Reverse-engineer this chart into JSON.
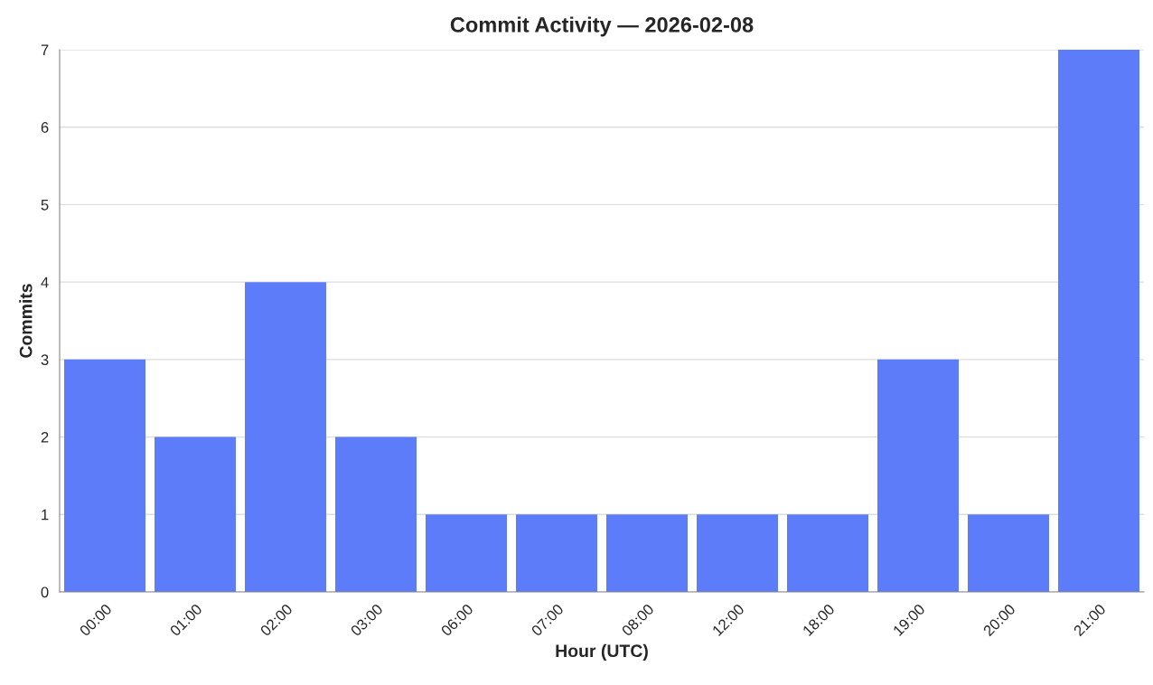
{
  "chart_data": {
    "type": "bar",
    "title": "Commit Activity — 2026-02-08",
    "xlabel": "Hour (UTC)",
    "ylabel": "Commits",
    "categories": [
      "00:00",
      "01:00",
      "02:00",
      "03:00",
      "06:00",
      "07:00",
      "08:00",
      "12:00",
      "18:00",
      "19:00",
      "20:00",
      "21:00"
    ],
    "values": [
      3,
      2,
      4,
      2,
      1,
      1,
      1,
      1,
      1,
      3,
      1,
      7
    ],
    "color": "#5c7cfa",
    "ylim": [
      0,
      7
    ],
    "yticks": [
      0,
      1,
      2,
      3,
      4,
      5,
      6,
      7
    ],
    "grid": "y"
  }
}
